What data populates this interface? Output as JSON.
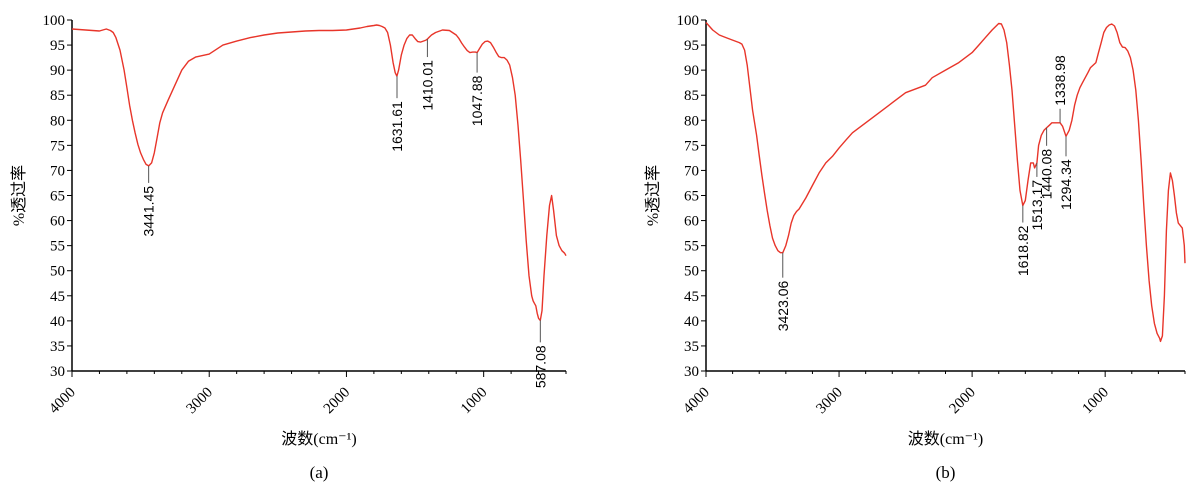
{
  "chart_data": [
    {
      "type": "line",
      "panel_label": "(a)",
      "xlabel": "波数(cm⁻¹)",
      "ylabel": "%透过率",
      "xlim": [
        4000,
        400
      ],
      "ylim": [
        30,
        100
      ],
      "x_ticks": [
        4000,
        3000,
        2000,
        1000
      ],
      "y_ticks": [
        30,
        35,
        40,
        45,
        50,
        55,
        60,
        65,
        70,
        75,
        80,
        85,
        90,
        95,
        100
      ],
      "line_color": "#e8352a",
      "series": [
        {
          "x": [
            4000,
            3900,
            3800,
            3750,
            3720,
            3700,
            3680,
            3650,
            3620,
            3600,
            3580,
            3560,
            3540,
            3520,
            3500,
            3480,
            3460,
            3441,
            3420,
            3400,
            3380,
            3360,
            3340,
            3300,
            3250,
            3200,
            3150,
            3100,
            3050,
            3000,
            2900,
            2800,
            2700,
            2600,
            2500,
            2400,
            2300,
            2200,
            2100,
            2000,
            1950,
            1900,
            1850,
            1800,
            1780,
            1760,
            1740,
            1720,
            1700,
            1680,
            1660,
            1645,
            1632,
            1620,
            1600,
            1580,
            1560,
            1540,
            1520,
            1500,
            1480,
            1460,
            1440,
            1420,
            1410,
            1400,
            1380,
            1350,
            1300,
            1250,
            1200,
            1180,
            1160,
            1140,
            1120,
            1100,
            1080,
            1060,
            1048,
            1030,
            1010,
            990,
            970,
            950,
            930,
            910,
            890,
            870,
            850,
            830,
            810,
            790,
            770,
            750,
            730,
            710,
            690,
            670,
            650,
            640,
            630,
            620,
            610,
            600,
            587,
            575,
            560,
            540,
            520,
            505,
            490,
            470,
            450,
            430,
            410,
            400
          ],
          "y": [
            98.2,
            98.0,
            97.8,
            98.2,
            97.9,
            97.5,
            96.5,
            94.0,
            90.0,
            86.5,
            83.0,
            80.0,
            77.5,
            75.2,
            73.5,
            72.2,
            71.2,
            70.9,
            71.5,
            73.5,
            76.5,
            79.5,
            81.5,
            84.0,
            87.0,
            90.0,
            91.8,
            92.6,
            92.9,
            93.2,
            95.0,
            95.8,
            96.5,
            97.0,
            97.4,
            97.6,
            97.8,
            97.9,
            97.9,
            98.0,
            98.2,
            98.4,
            98.7,
            98.9,
            99.0,
            98.9,
            98.7,
            98.4,
            97.5,
            95.0,
            91.5,
            89.5,
            88.8,
            90.0,
            93.0,
            95.0,
            96.3,
            97.0,
            97.0,
            96.3,
            95.7,
            95.6,
            95.8,
            96.0,
            96.2,
            96.5,
            97.0,
            97.5,
            98.0,
            97.9,
            97.0,
            96.3,
            95.4,
            94.6,
            93.9,
            93.5,
            93.6,
            93.6,
            93.5,
            94.3,
            95.2,
            95.7,
            95.8,
            95.5,
            94.6,
            93.6,
            92.7,
            92.5,
            92.5,
            92.0,
            91.0,
            88.5,
            85.0,
            79.0,
            72.0,
            64.0,
            56.0,
            49.0,
            45.0,
            44.0,
            43.5,
            43.0,
            41.5,
            40.5,
            40.1,
            42.0,
            49.0,
            57.0,
            63.0,
            65.0,
            62.0,
            57.0,
            55.0,
            54.0,
            53.5,
            53.0
          ]
        }
      ],
      "annotations": [
        {
          "label": "3441.45",
          "x": 3441.45,
          "y": 70.9
        },
        {
          "label": "1631.61",
          "x": 1631.61,
          "y": 88.8
        },
        {
          "label": "1410.01",
          "x": 1410.01,
          "y": 96.2
        },
        {
          "label": "1047.88",
          "x": 1047.88,
          "y": 93.5
        },
        {
          "label": "587.08",
          "x": 587.08,
          "y": 40.1
        }
      ]
    },
    {
      "type": "line",
      "panel_label": "(b)",
      "xlabel": "波数(cm⁻¹)",
      "ylabel": "%透过率",
      "xlim": [
        4000,
        400
      ],
      "ylim": [
        30,
        100
      ],
      "x_ticks": [
        4000,
        3000,
        2000,
        1000
      ],
      "y_ticks": [
        30,
        35,
        40,
        45,
        50,
        55,
        60,
        65,
        70,
        75,
        80,
        85,
        90,
        95,
        100
      ],
      "line_color": "#e8352a",
      "series": [
        {
          "x": [
            4000,
            3950,
            3900,
            3850,
            3800,
            3750,
            3730,
            3710,
            3690,
            3670,
            3650,
            3620,
            3600,
            3580,
            3560,
            3540,
            3520,
            3500,
            3480,
            3460,
            3440,
            3423,
            3400,
            3380,
            3360,
            3340,
            3320,
            3300,
            3250,
            3200,
            3150,
            3100,
            3050,
            3000,
            2950,
            2900,
            2800,
            2700,
            2600,
            2500,
            2400,
            2350,
            2300,
            2200,
            2100,
            2000,
            1950,
            1900,
            1850,
            1800,
            1780,
            1760,
            1740,
            1720,
            1700,
            1680,
            1660,
            1640,
            1619,
            1600,
            1580,
            1560,
            1540,
            1530,
            1513,
            1500,
            1480,
            1460,
            1440,
            1420,
            1400,
            1380,
            1360,
            1339,
            1320,
            1294,
            1270,
            1250,
            1230,
            1210,
            1190,
            1170,
            1150,
            1130,
            1110,
            1090,
            1070,
            1050,
            1030,
            1010,
            990,
            970,
            950,
            930,
            910,
            890,
            870,
            850,
            830,
            810,
            790,
            770,
            750,
            730,
            710,
            690,
            670,
            650,
            630,
            610,
            590,
            584,
            570,
            555,
            540,
            525,
            510,
            495,
            480,
            465,
            450,
            435,
            420,
            405,
            400
          ],
          "y": [
            99.5,
            98.0,
            97.0,
            96.5,
            96.0,
            95.5,
            95.2,
            94.0,
            91.0,
            86.5,
            82.0,
            77.0,
            73.0,
            69.0,
            65.5,
            62.0,
            59.0,
            56.5,
            55.0,
            54.0,
            53.6,
            53.6,
            55.0,
            57.0,
            59.5,
            61.0,
            61.8,
            62.3,
            64.5,
            67.0,
            69.5,
            71.5,
            72.8,
            74.5,
            76.0,
            77.5,
            79.5,
            81.5,
            83.5,
            85.5,
            86.5,
            87.0,
            88.5,
            90.0,
            91.5,
            93.5,
            95.0,
            96.5,
            98.0,
            99.3,
            99.2,
            98.0,
            95.5,
            91.0,
            86.0,
            79.0,
            72.0,
            66.0,
            63.0,
            64.0,
            68.0,
            71.5,
            71.5,
            70.5,
            71.5,
            75.0,
            77.0,
            78.0,
            78.5,
            79.0,
            79.5,
            79.5,
            79.5,
            79.5,
            78.8,
            76.8,
            78.0,
            80.0,
            83.0,
            85.0,
            86.5,
            87.5,
            88.5,
            89.5,
            90.5,
            91.0,
            91.5,
            93.5,
            95.5,
            97.5,
            98.5,
            99.0,
            99.2,
            98.8,
            97.5,
            95.5,
            94.6,
            94.5,
            93.8,
            92.5,
            90.0,
            86.0,
            80.0,
            72.0,
            63.0,
            55.0,
            48.0,
            43.0,
            39.5,
            37.5,
            36.5,
            35.9,
            37.0,
            45.0,
            58.0,
            66.0,
            69.5,
            68.0,
            65.0,
            61.5,
            59.5,
            59.0,
            58.5,
            55.0,
            51.5
          ]
        }
      ],
      "annotations": [
        {
          "label": "3423.06",
          "x": 3423.06,
          "y": 53.6
        },
        {
          "label": "1618.82",
          "x": 1618.82,
          "y": 63.0
        },
        {
          "label": "1513.17",
          "x": 1513.17,
          "y": 71.5
        },
        {
          "label": "1440.08",
          "x": 1440.08,
          "y": 78.5
        },
        {
          "label": "1338.98",
          "x": 1338.98,
          "y": 79.5
        },
        {
          "label": "1294.34",
          "x": 1294.34,
          "y": 76.8
        }
      ]
    }
  ]
}
